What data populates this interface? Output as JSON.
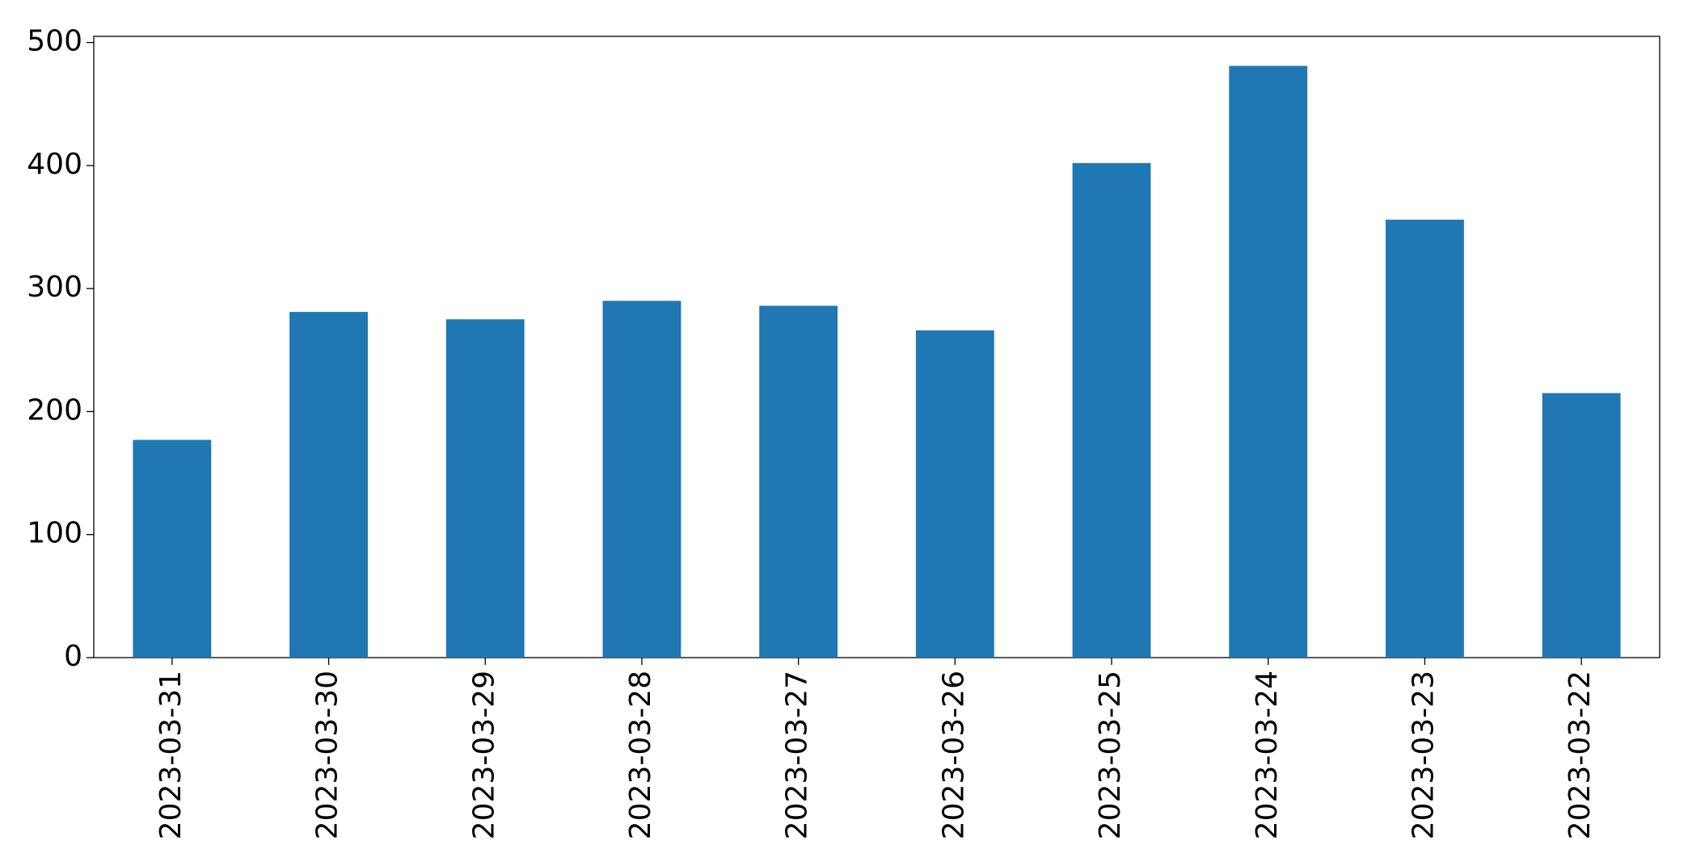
{
  "chart_data": {
    "type": "bar",
    "categories": [
      "2023-03-31",
      "2023-03-30",
      "2023-03-29",
      "2023-03-28",
      "2023-03-27",
      "2023-03-26",
      "2023-03-25",
      "2023-03-24",
      "2023-03-23",
      "2023-03-22"
    ],
    "values": [
      177,
      281,
      275,
      290,
      286,
      266,
      402,
      481,
      356,
      215
    ],
    "color": "#1f77b4",
    "ylim": [
      0,
      505
    ],
    "yticks": [
      0,
      100,
      200,
      300,
      400,
      500
    ],
    "grid": false
  }
}
